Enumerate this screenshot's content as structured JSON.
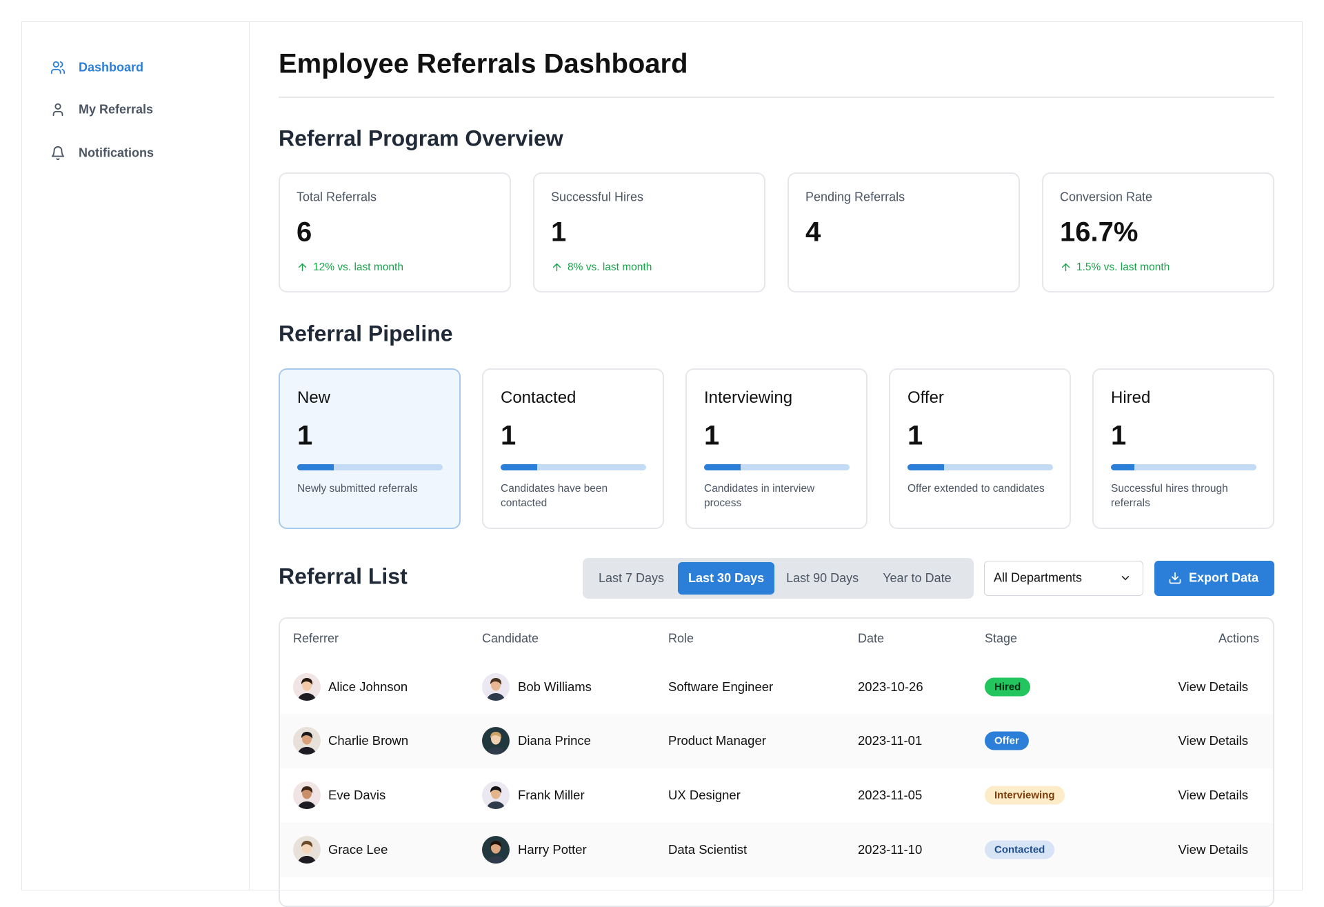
{
  "sidebar": {
    "items": [
      "Dashboard",
      "My Referrals",
      "Notifications"
    ],
    "active": 0
  },
  "header": {
    "title": "Employee Referrals Dashboard"
  },
  "overview": {
    "heading": "Referral Program Overview",
    "stats": [
      {
        "label": "Total Referrals",
        "value": "6",
        "change": "12% vs. last month"
      },
      {
        "label": "Successful Hires",
        "value": "1",
        "change": "8% vs. last month"
      },
      {
        "label": "Pending Referrals",
        "value": "4"
      },
      {
        "label": "Conversion Rate",
        "value": "16.7%",
        "change": "1.5% vs. last month"
      }
    ]
  },
  "pipeline": {
    "heading": "Referral Pipeline",
    "stages": [
      {
        "name": "New",
        "count": "1",
        "description": "Newly submitted referrals"
      },
      {
        "name": "Contacted",
        "count": "1",
        "description": "Candidates have been contacted"
      },
      {
        "name": "Interviewing",
        "count": "1",
        "description": "Candidates in interview process"
      },
      {
        "name": "Offer",
        "count": "1",
        "description": "Offer extended to candidates"
      },
      {
        "name": "Hired",
        "count": "1",
        "description": "Successful hires through referrals"
      }
    ]
  },
  "referral_list": {
    "heading": "Referral List",
    "ranges": [
      "Last 7 Days",
      "Last 30 Days",
      "Last 90 Days",
      "Year to Date"
    ],
    "selected_range": 1,
    "department": "All Departments",
    "export": "Export Data",
    "table": {
      "columns": [
        "Referrer",
        "Candidate",
        "Role",
        "Date",
        "Stage",
        "Actions"
      ],
      "rows": [
        [
          "Alice Johnson",
          "Bob Williams",
          "Software Engineer",
          "2023-10-26",
          "Hired",
          "View Details"
        ],
        [
          "Charlie Brown",
          "Diana Prince",
          "Product Manager",
          "2023-11-01",
          "Offer",
          "View Details"
        ],
        [
          "Eve Davis",
          "Frank Miller",
          "UX Designer",
          "2023-11-05",
          "Interviewing",
          "View Details"
        ],
        [
          "Grace Lee",
          "Harry Potter",
          "Data Scientist",
          "2023-11-10",
          "Contacted",
          "View Details"
        ]
      ]
    }
  }
}
